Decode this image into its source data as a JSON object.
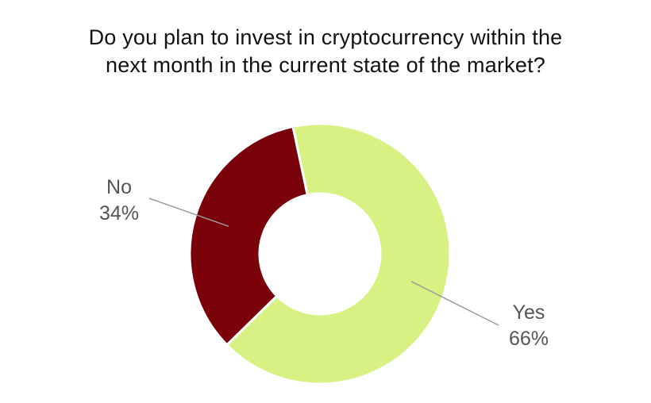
{
  "chart_data": {
    "type": "pie",
    "variant": "donut",
    "title": [
      "Do you plan to invest in cryptocurrency within the",
      "next month in the current state of the market?"
    ],
    "slices": [
      {
        "label": "Yes",
        "value": 66,
        "value_label": "66%",
        "color": "#d8f183"
      },
      {
        "label": "No",
        "value": 34,
        "value_label": "34%",
        "color": "#7a0009"
      }
    ],
    "legend": "none",
    "data_labels": "outside-with-leader-lines"
  }
}
